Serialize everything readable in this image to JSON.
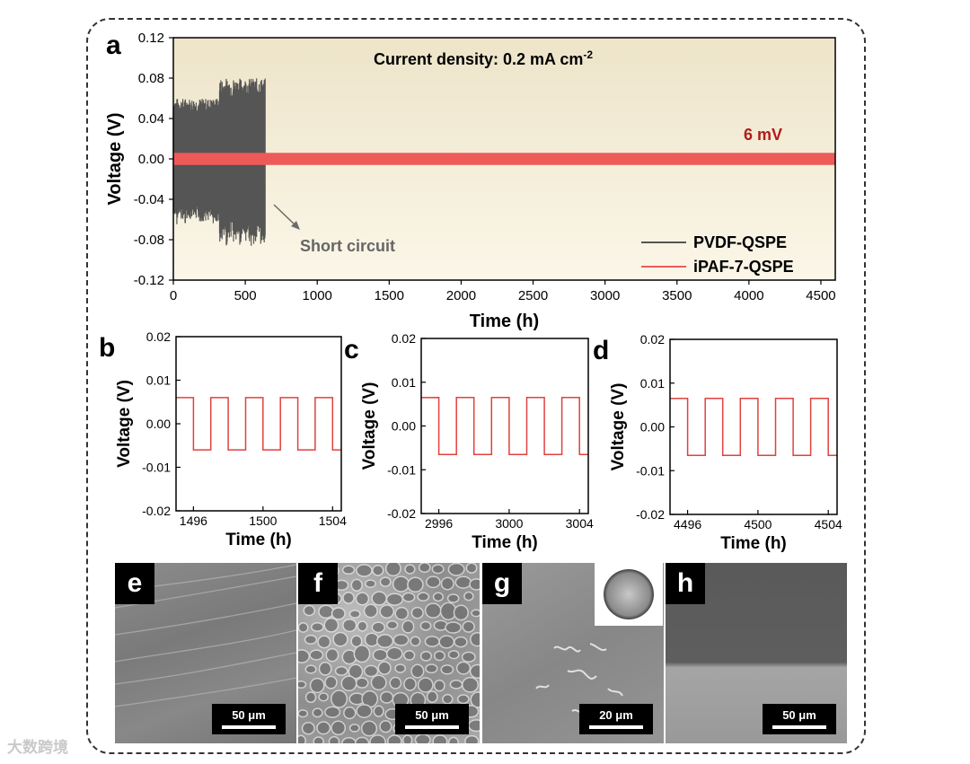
{
  "chart_data": [
    {
      "panel": "a",
      "type": "line",
      "annotation_title": "Current density: 0.2 mA cm",
      "annotation_sup": "-2",
      "xlabel": "Time (h)",
      "ylabel": "Voltage (V)",
      "xlim": [
        0,
        4600
      ],
      "ylim": [
        -0.12,
        0.12
      ],
      "xticks": [
        0,
        500,
        1000,
        1500,
        2000,
        2500,
        3000,
        3500,
        4000,
        4500
      ],
      "yticks": [
        "0.12",
        "0.08",
        "0.04",
        "0.00",
        "-0.04",
        "-0.08",
        "-0.12"
      ],
      "series": [
        {
          "name": "PVDF-QSPE",
          "color": "#555555",
          "t_end": 640,
          "amplitude": [
            0.06,
            0.08
          ]
        },
        {
          "name": "iPAF-7-QSPE",
          "color": "#ee5a58",
          "t_end": 4600,
          "amplitude": 0.006
        }
      ],
      "labels": {
        "short_circuit": "Short circuit",
        "value_label": "6 mV"
      }
    },
    {
      "panel": "b",
      "type": "line",
      "xlabel": "Time (h)",
      "ylabel": "Voltage (V)",
      "xlim": [
        1495,
        1504.5
      ],
      "ylim": [
        -0.02,
        0.02
      ],
      "xticks": [
        1496,
        1500,
        1504
      ],
      "yticks": [
        "0.02",
        "0.01",
        "0.00",
        "-0.01",
        "-0.02"
      ],
      "series": [
        {
          "name": "iPAF-7-QSPE",
          "amplitude": 0.006,
          "period_h": 2,
          "start": 1495
        }
      ]
    },
    {
      "panel": "c",
      "type": "line",
      "xlabel": "Time (h)",
      "ylabel": "Voltage (V)",
      "xlim": [
        2995,
        3004.5
      ],
      "ylim": [
        -0.02,
        0.02
      ],
      "xticks": [
        2996,
        3000,
        3004
      ],
      "yticks": [
        "0.02",
        "0.01",
        "0.00",
        "-0.01",
        "-0.02"
      ],
      "series": [
        {
          "name": "iPAF-7-QSPE",
          "amplitude": 0.0065,
          "period_h": 2,
          "start": 2995
        }
      ]
    },
    {
      "panel": "d",
      "type": "line",
      "xlabel": "Time (h)",
      "ylabel": "Voltage (V)",
      "xlim": [
        4495,
        4504.5
      ],
      "ylim": [
        -0.02,
        0.02
      ],
      "xticks": [
        4496,
        4500,
        4504
      ],
      "yticks": [
        "0.02",
        "0.01",
        "0.00",
        "-0.01",
        "-0.02"
      ],
      "series": [
        {
          "name": "iPAF-7-QSPE",
          "amplitude": 0.0065,
          "period_h": 2,
          "start": 4495
        }
      ]
    }
  ],
  "sem_images": [
    {
      "label": "e",
      "scale": "50 μm"
    },
    {
      "label": "f",
      "scale": "50 μm"
    },
    {
      "label": "g",
      "scale": "20 μm"
    },
    {
      "label": "h",
      "scale": "50 μm"
    }
  ],
  "watermark": "大数跨境"
}
